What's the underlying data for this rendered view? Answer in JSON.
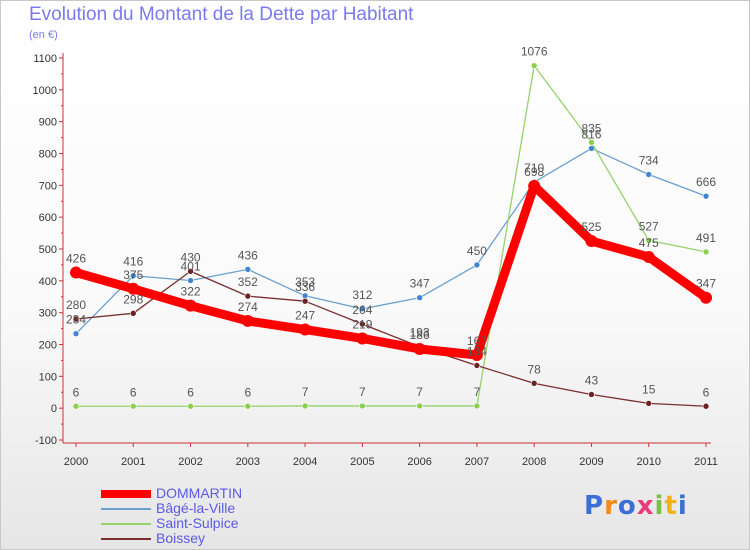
{
  "title": "Evolution du Montant de la Dette par Habitant",
  "subtitle": "(en €)",
  "logo": {
    "text": "Proxiti",
    "letter_colors": [
      "#3b6fd8",
      "#f28a1a",
      "#3b6fd8",
      "#ea3b7a",
      "#7bc043",
      "#f2b31a",
      "#3b6fd8"
    ]
  },
  "chart_data": {
    "type": "line",
    "title": "Evolution du Montant de la Dette par Habitant",
    "ylabel": "(en €)",
    "x": [
      "2000",
      "2001",
      "2002",
      "2003",
      "2004",
      "2005",
      "2006",
      "2007",
      "2008",
      "2009",
      "2010",
      "2011"
    ],
    "ylim": [
      -100,
      1100
    ],
    "yticks": [
      "-100",
      "0",
      "100",
      "200",
      "300",
      "400",
      "500",
      "600",
      "700",
      "800",
      "900",
      "1000",
      "1100"
    ],
    "grid": false,
    "legend_position": "bottom-left",
    "series": [
      {
        "name": "DOMMARTIN",
        "color": "#ff0000",
        "bold": true,
        "values": [
          426,
          375,
          322,
          274,
          247,
          219,
          186,
          167,
          698,
          525,
          475,
          347
        ],
        "labels": [
          "426",
          "375",
          "322",
          "274",
          "247",
          "219",
          "186",
          "167",
          "698",
          "525",
          "475",
          "347"
        ]
      },
      {
        "name": "Bâgé-la-Ville",
        "color": "#6aa0cf",
        "marker": "#3f86cf",
        "values": [
          234,
          416,
          401,
          436,
          353,
          312,
          347,
          450,
          710,
          816,
          734,
          666
        ],
        "labels": [
          "234",
          "416",
          "401",
          "436",
          "353",
          "312",
          "347",
          "450",
          "710",
          "816",
          "734",
          "666"
        ]
      },
      {
        "name": "Saint-Sulpice",
        "color": "#93d36a",
        "marker": "#8ccf4f",
        "values": [
          6,
          6,
          6,
          6,
          7,
          7,
          7,
          7,
          1076,
          835,
          527,
          491
        ],
        "labels": [
          "6",
          "6",
          "6",
          "6",
          "7",
          "7",
          "7",
          "7",
          "1076",
          "835",
          "527",
          "491"
        ]
      },
      {
        "name": "Boissey",
        "color": "#7a2e2e",
        "marker": "#6b2222",
        "values": [
          280,
          298,
          430,
          352,
          336,
          264,
          193,
          134,
          78,
          43,
          15,
          6
        ],
        "labels": [
          "280",
          "298",
          "430",
          "352",
          "336",
          "264",
          "193",
          "134",
          "78",
          "43",
          "15",
          "6"
        ]
      }
    ]
  }
}
